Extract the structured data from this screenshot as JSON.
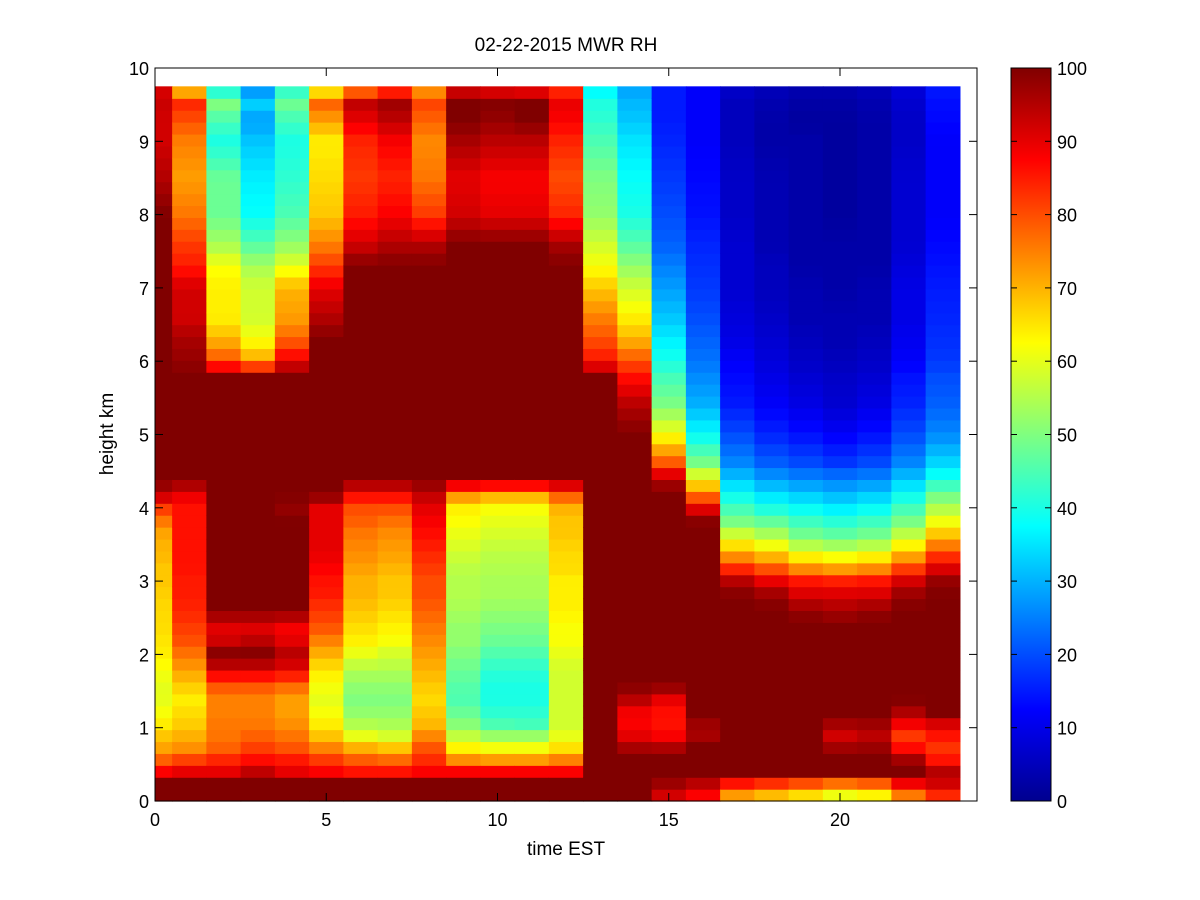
{
  "chart_data": {
    "type": "heatmap",
    "title": "02-22-2015 MWR RH",
    "xlabel": "time EST",
    "ylabel": "height km",
    "xlim": [
      0,
      24
    ],
    "ylim": [
      0,
      10
    ],
    "xticks": [
      "0",
      "5",
      "10",
      "15",
      "20"
    ],
    "yticks": [
      "0",
      "1",
      "2",
      "3",
      "4",
      "5",
      "6",
      "7",
      "8",
      "9",
      "10"
    ],
    "colorbar": {
      "colormap": "jet",
      "clim": [
        0,
        100
      ],
      "ticks": [
        "0",
        "10",
        "20",
        "30",
        "40",
        "50",
        "60",
        "70",
        "80",
        "90",
        "100"
      ]
    },
    "x": [
      0,
      1,
      2,
      3,
      4,
      5,
      6,
      7,
      8,
      9,
      10,
      11,
      12,
      13,
      14,
      15,
      16,
      17,
      18,
      19,
      20,
      21,
      22,
      23
    ],
    "data_top_km": 9.75,
    "profiles": {
      "heights_km": [
        0,
        0.1,
        0.2,
        0.3,
        0.4,
        0.5,
        0.6,
        0.7,
        0.8,
        0.9,
        1.0,
        1.2,
        1.4,
        1.6,
        1.8,
        2.0,
        2.2,
        2.4,
        2.6,
        2.8,
        3.0,
        3.2,
        3.4,
        3.6,
        3.8,
        4.0,
        4.2,
        4.4,
        4.6,
        5.0,
        5.4,
        5.8,
        6.0,
        6.3,
        6.6,
        7.0,
        7.3,
        7.6,
        8.0,
        8.5,
        9.0,
        9.3,
        9.6,
        9.75
      ],
      "rh_percent": [
        [
          100,
          100,
          100,
          100,
          88,
          85,
          75,
          72,
          70,
          68,
          65,
          62,
          60,
          60,
          62,
          64,
          65,
          66,
          66,
          67,
          68,
          68,
          70,
          70,
          75,
          82,
          95,
          100,
          100,
          100,
          100,
          100,
          100,
          100,
          100,
          100,
          100,
          100,
          100,
          95,
          92,
          92,
          93,
          90
        ],
        [
          100,
          100,
          100,
          100,
          90,
          88,
          78,
          74,
          72,
          70,
          68,
          66,
          64,
          68,
          72,
          76,
          80,
          82,
          84,
          85,
          85,
          86,
          86,
          86,
          86,
          86,
          90,
          100,
          100,
          100,
          100,
          100,
          98,
          96,
          92,
          92,
          85,
          82,
          76,
          72,
          75,
          80,
          85,
          55
        ],
        [
          100,
          100,
          100,
          100,
          90,
          88,
          82,
          78,
          78,
          76,
          76,
          75,
          75,
          80,
          92,
          100,
          92,
          90,
          100,
          100,
          100,
          100,
          100,
          100,
          100,
          100,
          100,
          100,
          100,
          100,
          100,
          100,
          80,
          70,
          64,
          64,
          62,
          54,
          48,
          48,
          40,
          45,
          52,
          30
        ],
        [
          100,
          100,
          100,
          100,
          94,
          90,
          85,
          82,
          80,
          78,
          76,
          75,
          75,
          80,
          92,
          100,
          94,
          90,
          100,
          100,
          100,
          100,
          100,
          100,
          100,
          100,
          100,
          100,
          100,
          100,
          100,
          100,
          72,
          62,
          58,
          58,
          54,
          46,
          38,
          36,
          32,
          28,
          35,
          20
        ],
        [
          100,
          100,
          100,
          100,
          90,
          88,
          84,
          80,
          78,
          76,
          74,
          72,
          72,
          78,
          90,
          95,
          90,
          88,
          100,
          100,
          100,
          100,
          100,
          100,
          100,
          98,
          100,
          100,
          100,
          100,
          100,
          100,
          90,
          78,
          72,
          70,
          60,
          52,
          45,
          42,
          40,
          44,
          50,
          35
        ],
        [
          100,
          100,
          100,
          100,
          88,
          86,
          80,
          76,
          72,
          68,
          65,
          62,
          60,
          62,
          65,
          70,
          75,
          80,
          82,
          85,
          86,
          88,
          90,
          90,
          90,
          90,
          100,
          100,
          100,
          100,
          100,
          100,
          100,
          100,
          95,
          90,
          82,
          75,
          68,
          66,
          64,
          72,
          80,
          50
        ],
        [
          100,
          100,
          100,
          100,
          86,
          84,
          76,
          72,
          66,
          60,
          56,
          52,
          50,
          52,
          55,
          60,
          64,
          66,
          68,
          70,
          70,
          72,
          74,
          75,
          78,
          80,
          88,
          100,
          100,
          100,
          100,
          100,
          100,
          100,
          100,
          100,
          100,
          92,
          85,
          82,
          84,
          90,
          95,
          60
        ],
        [
          100,
          100,
          100,
          100,
          86,
          84,
          74,
          70,
          64,
          58,
          55,
          52,
          50,
          52,
          55,
          58,
          62,
          64,
          66,
          68,
          68,
          70,
          72,
          73,
          76,
          80,
          88,
          100,
          100,
          100,
          100,
          100,
          100,
          100,
          100,
          100,
          100,
          95,
          88,
          84,
          88,
          94,
          98,
          70
        ],
        [
          100,
          100,
          100,
          100,
          88,
          86,
          82,
          80,
          78,
          74,
          70,
          68,
          66,
          68,
          70,
          72,
          74,
          76,
          78,
          80,
          80,
          82,
          84,
          86,
          88,
          90,
          94,
          100,
          100,
          100,
          100,
          100,
          100,
          100,
          100,
          100,
          100,
          95,
          82,
          76,
          74,
          78,
          82,
          65
        ],
        [
          100,
          100,
          100,
          100,
          88,
          86,
          68,
          64,
          62,
          56,
          52,
          48,
          45,
          46,
          48,
          50,
          52,
          52,
          54,
          55,
          55,
          56,
          58,
          60,
          62,
          64,
          75,
          100,
          100,
          100,
          100,
          100,
          100,
          100,
          100,
          100,
          100,
          100,
          92,
          90,
          96,
          100,
          100,
          85
        ],
        [
          100,
          100,
          100,
          100,
          88,
          86,
          66,
          62,
          60,
          52,
          46,
          42,
          40,
          40,
          42,
          45,
          48,
          50,
          52,
          54,
          54,
          55,
          56,
          58,
          60,
          62,
          72,
          100,
          100,
          100,
          100,
          100,
          100,
          100,
          100,
          100,
          100,
          100,
          90,
          88,
          94,
          98,
          100,
          82
        ],
        [
          100,
          100,
          100,
          100,
          88,
          86,
          66,
          62,
          60,
          52,
          45,
          42,
          40,
          40,
          42,
          45,
          48,
          50,
          52,
          54,
          54,
          55,
          56,
          58,
          60,
          62,
          72,
          100,
          100,
          100,
          100,
          100,
          100,
          100,
          100,
          100,
          100,
          100,
          90,
          88,
          94,
          100,
          100,
          80
        ],
        [
          100,
          100,
          100,
          100,
          88,
          86,
          70,
          66,
          64,
          60,
          58,
          58,
          58,
          58,
          58,
          60,
          62,
          62,
          64,
          64,
          64,
          66,
          66,
          68,
          68,
          70,
          80,
          100,
          100,
          100,
          100,
          100,
          100,
          100,
          100,
          100,
          100,
          96,
          84,
          80,
          84,
          88,
          90,
          78
        ],
        [
          100,
          100,
          100,
          100,
          100,
          100,
          100,
          100,
          100,
          100,
          100,
          100,
          100,
          100,
          100,
          100,
          100,
          100,
          100,
          100,
          100,
          100,
          100,
          100,
          100,
          100,
          100,
          100,
          100,
          100,
          100,
          100,
          86,
          80,
          75,
          68,
          62,
          58,
          52,
          50,
          45,
          42,
          40,
          35
        ],
        [
          100,
          100,
          100,
          100,
          100,
          100,
          100,
          98,
          92,
          90,
          88,
          88,
          95,
          100,
          100,
          100,
          100,
          100,
          100,
          100,
          100,
          100,
          100,
          100,
          100,
          100,
          100,
          100,
          100,
          100,
          95,
          86,
          80,
          70,
          64,
          58,
          52,
          46,
          40,
          38,
          35,
          32,
          30,
          28
        ],
        [
          100,
          90,
          95,
          100,
          100,
          100,
          100,
          98,
          90,
          88,
          86,
          86,
          90,
          100,
          100,
          100,
          100,
          100,
          100,
          100,
          100,
          100,
          100,
          100,
          100,
          100,
          100,
          95,
          80,
          62,
          50,
          44,
          40,
          36,
          32,
          28,
          25,
          22,
          20,
          18,
          16,
          15,
          15,
          15
        ],
        [
          100,
          85,
          90,
          100,
          100,
          100,
          100,
          100,
          100,
          96,
          96,
          100,
          100,
          100,
          100,
          100,
          100,
          100,
          100,
          100,
          100,
          100,
          100,
          100,
          100,
          90,
          75,
          62,
          50,
          38,
          30,
          26,
          24,
          22,
          20,
          18,
          17,
          16,
          14,
          13,
          12,
          12,
          12,
          12
        ],
        [
          100,
          66,
          75,
          100,
          100,
          100,
          100,
          100,
          100,
          100,
          100,
          100,
          100,
          100,
          100,
          100,
          100,
          100,
          100,
          100,
          95,
          82,
          70,
          60,
          50,
          44,
          38,
          32,
          26,
          20,
          15,
          13,
          12,
          10,
          9,
          8,
          8,
          8,
          7,
          7,
          6,
          6,
          6,
          8
        ],
        [
          100,
          62,
          70,
          100,
          100,
          100,
          100,
          100,
          100,
          100,
          100,
          100,
          100,
          100,
          100,
          100,
          100,
          100,
          100,
          98,
          90,
          78,
          66,
          56,
          48,
          40,
          34,
          28,
          22,
          16,
          12,
          10,
          9,
          8,
          7,
          6,
          6,
          5,
          5,
          5,
          4,
          4,
          5,
          6
        ],
        [
          100,
          58,
          66,
          98,
          100,
          100,
          100,
          100,
          100,
          100,
          100,
          100,
          100,
          100,
          100,
          100,
          100,
          100,
          98,
          92,
          86,
          72,
          60,
          50,
          44,
          38,
          32,
          26,
          20,
          14,
          10,
          8,
          7,
          6,
          5,
          5,
          4,
          4,
          4,
          4,
          4,
          3,
          4,
          5
        ],
        [
          100,
          52,
          60,
          98,
          100,
          100,
          100,
          98,
          94,
          92,
          95,
          100,
          100,
          100,
          100,
          100,
          100,
          100,
          96,
          92,
          85,
          70,
          58,
          48,
          42,
          36,
          30,
          25,
          18,
          12,
          8,
          7,
          6,
          5,
          5,
          4,
          4,
          4,
          3,
          3,
          3,
          3,
          4,
          5
        ],
        [
          100,
          55,
          62,
          100,
          100,
          100,
          100,
          98,
          96,
          94,
          96,
          100,
          100,
          100,
          100,
          100,
          100,
          100,
          98,
          92,
          86,
          72,
          60,
          50,
          44,
          38,
          32,
          26,
          20,
          14,
          10,
          8,
          7,
          6,
          5,
          5,
          4,
          4,
          4,
          4,
          4,
          4,
          5,
          6
        ],
        [
          100,
          70,
          80,
          100,
          100,
          100,
          95,
          88,
          84,
          82,
          86,
          95,
          100,
          100,
          100,
          100,
          100,
          100,
          100,
          98,
          92,
          80,
          68,
          58,
          50,
          44,
          38,
          32,
          26,
          20,
          16,
          14,
          12,
          11,
          10,
          10,
          9,
          8,
          8,
          8,
          7,
          7,
          8,
          9
        ],
        [
          100,
          80,
          86,
          100,
          95,
          90,
          84,
          82,
          84,
          86,
          88,
          100,
          100,
          100,
          100,
          100,
          100,
          100,
          100,
          100,
          98,
          90,
          80,
          70,
          62,
          55,
          48,
          40,
          34,
          26,
          22,
          20,
          18,
          17,
          16,
          15,
          14,
          13,
          12,
          12,
          12,
          13,
          14,
          15
        ]
      ]
    }
  }
}
